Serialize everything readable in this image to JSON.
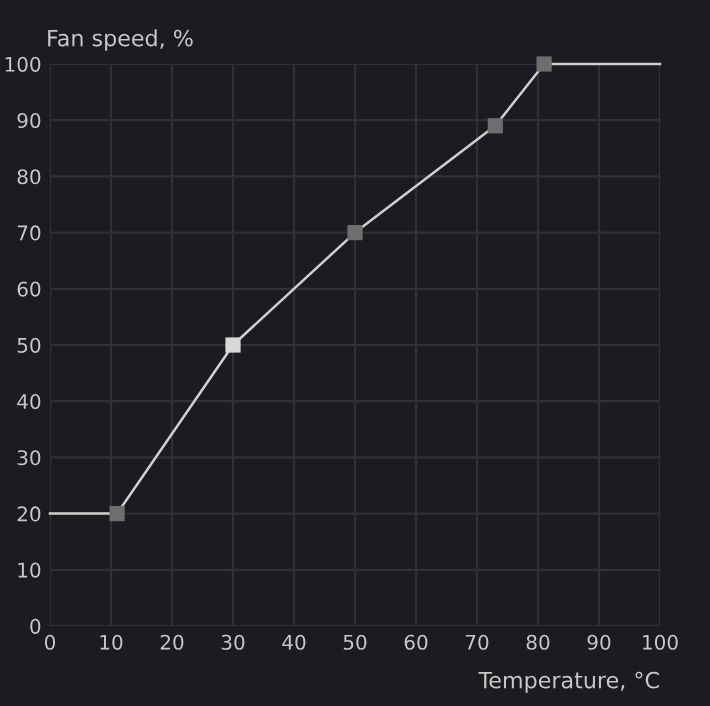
{
  "chart_data": {
    "type": "line",
    "ylabel": "Fan speed, %",
    "xlabel": "Temperature, °C",
    "xlim": [
      0,
      100
    ],
    "ylim": [
      0,
      100
    ],
    "xticks": [
      0,
      10,
      20,
      30,
      40,
      50,
      60,
      70,
      80,
      90,
      100
    ],
    "yticks": [
      0,
      10,
      20,
      30,
      40,
      50,
      60,
      70,
      80,
      90,
      100
    ],
    "grid": true,
    "legend": false,
    "series": [
      {
        "color": "#d0d0d0",
        "marker": "none",
        "x": [
          0,
          11,
          30,
          50,
          73,
          81,
          100
        ],
        "values": [
          20,
          20,
          50,
          70,
          89,
          100,
          100
        ]
      },
      {
        "type": "scatter",
        "marker": "square",
        "colors": [
          "#6e6e6e",
          "#d8d8d8",
          "#6e6e6e",
          "#6e6e6e",
          "#6e6e6e"
        ],
        "x": [
          11,
          30,
          50,
          73,
          81
        ],
        "values": [
          20,
          50,
          70,
          89,
          100
        ]
      }
    ]
  }
}
